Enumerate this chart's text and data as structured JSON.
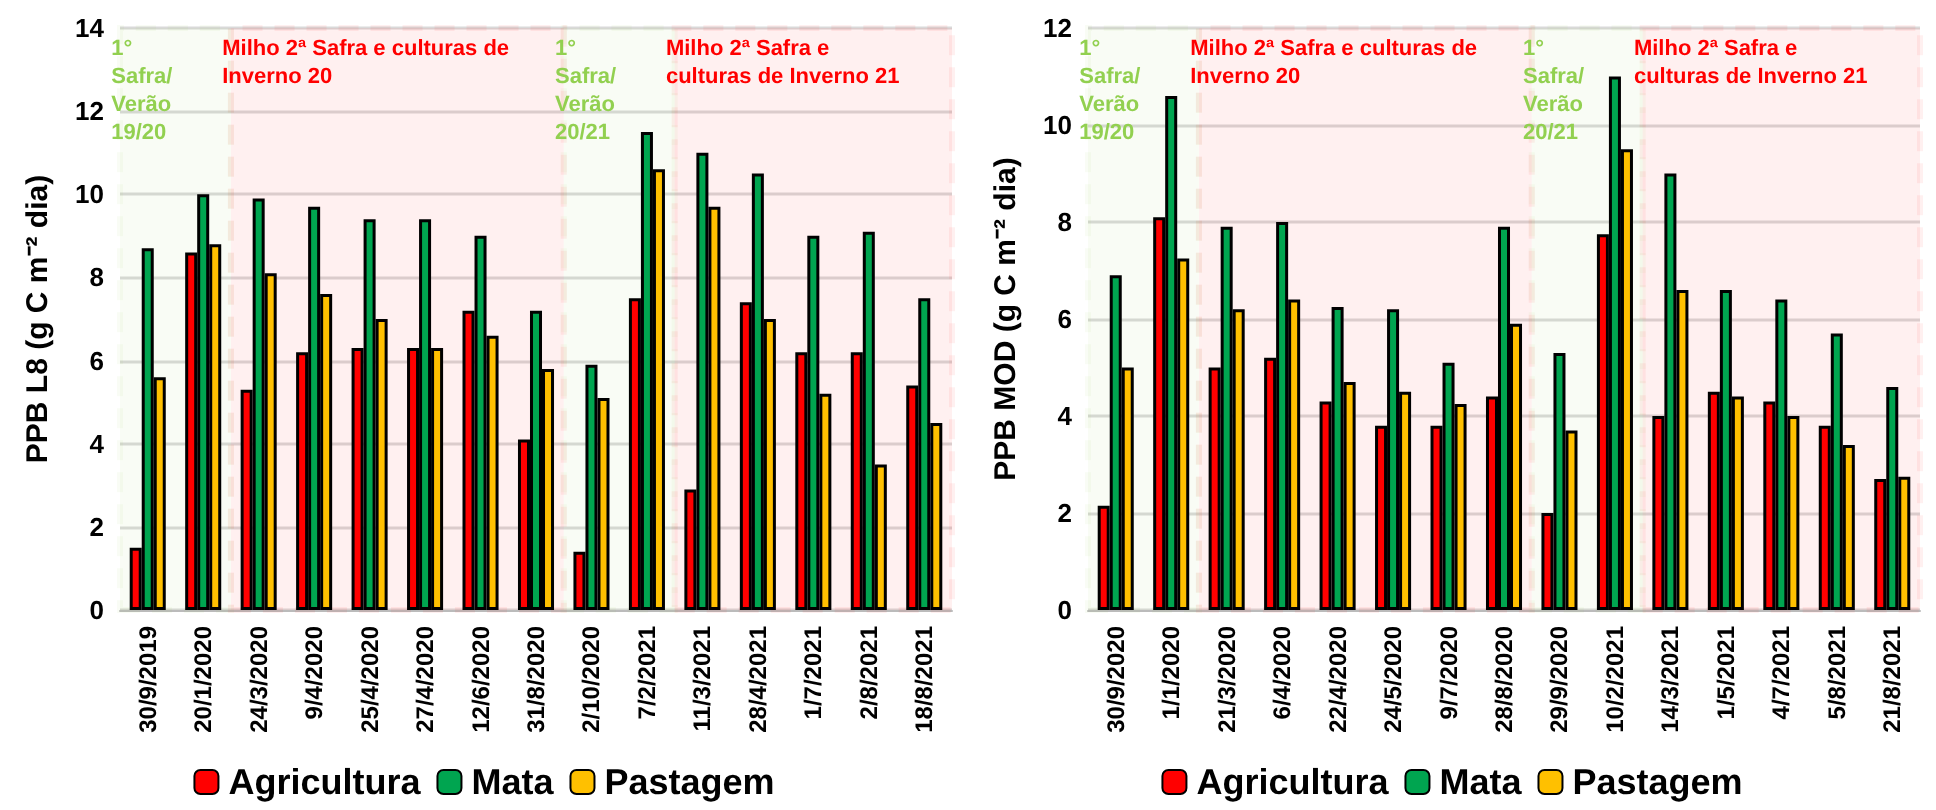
{
  "chart_data": [
    {
      "type": "bar",
      "ylabel": "PPB L8 (g C m⁻² dia)",
      "categories": [
        "30/9/2019",
        "20/1/2020",
        "24/3/2020",
        "9/4/2020",
        "25/4/2020",
        "27/4/2020",
        "12/6/2020",
        "31/8/2020",
        "2/10/2020",
        "7/2/2021",
        "11/3/2021",
        "28/4/2021",
        "1/7/2021",
        "2/8/2021",
        "18/8/2021"
      ],
      "series": [
        {
          "name": "Agricultura",
          "color": "#ff0000",
          "values": [
            1.5,
            8.6,
            5.3,
            6.2,
            6.3,
            6.3,
            7.2,
            4.1,
            1.4,
            7.5,
            2.9,
            7.4,
            6.2,
            6.2,
            5.4
          ]
        },
        {
          "name": "Mata",
          "color": "#00a550",
          "values": [
            8.7,
            10.0,
            9.9,
            9.7,
            9.4,
            9.4,
            9.0,
            7.2,
            5.9,
            11.5,
            11.0,
            10.5,
            9.0,
            9.1,
            7.5
          ]
        },
        {
          "name": "Pastagem",
          "color": "#ffc000",
          "values": [
            5.6,
            8.8,
            8.1,
            7.6,
            7.0,
            6.3,
            6.6,
            5.8,
            5.1,
            10.6,
            9.7,
            7.0,
            5.2,
            3.5,
            4.5
          ]
        }
      ],
      "ylim": [
        0,
        14
      ],
      "yticks": [
        0,
        2,
        4,
        6,
        8,
        10,
        12,
        14
      ],
      "grid": "y",
      "legend": "bottom",
      "bands": [
        {
          "axis": "x",
          "from": "30/9/2019",
          "to": "20/1/2020",
          "label": "1° Safra/Verão 19/20",
          "color": "#92d050"
        },
        {
          "axis": "x",
          "from": "24/3/2020",
          "to": "31/8/2020",
          "label": "Milho 2ª Safra e culturas de Inverno 20",
          "color": "#ff0000"
        },
        {
          "axis": "x",
          "from": "2/10/2020",
          "to": "7/2/2021",
          "label": "1° Safra/Verão 20/21",
          "color": "#92d050"
        },
        {
          "axis": "x",
          "from": "11/3/2021",
          "to": "18/8/2021",
          "label": "Milho 2ª Safra e culturas de Inverno 21",
          "color": "#ff0000"
        }
      ]
    },
    {
      "type": "bar",
      "ylabel": "PPB MOD (g C m⁻² dia)",
      "categories": [
        "30/9/2020",
        "1/1/2020",
        "21/3/2020",
        "6/4/2020",
        "22/4/2020",
        "24/5/2020",
        "9/7/2020",
        "28/8/2020",
        "29/9/2020",
        "10/2/2021",
        "14/3/2021",
        "1/5/2021",
        "4/7/2021",
        "5/8/2021",
        "21/8/2021"
      ],
      "series": [
        {
          "name": "Agricultura",
          "color": "#ff0000",
          "values": [
            2.15,
            8.1,
            5.0,
            5.2,
            4.3,
            3.8,
            3.8,
            4.4,
            2.0,
            7.75,
            4.0,
            4.5,
            4.3,
            3.8,
            2.7
          ]
        },
        {
          "name": "Mata",
          "color": "#00a550",
          "values": [
            6.9,
            10.6,
            7.9,
            8.0,
            6.25,
            6.2,
            5.1,
            7.9,
            5.3,
            11.0,
            9.0,
            6.6,
            6.4,
            5.7,
            4.6
          ]
        },
        {
          "name": "Pastagem",
          "color": "#ffc000",
          "values": [
            5.0,
            7.25,
            6.2,
            6.4,
            4.7,
            4.5,
            4.25,
            5.9,
            3.7,
            9.5,
            6.6,
            4.4,
            4.0,
            3.4,
            2.75
          ]
        }
      ],
      "ylim": [
        0,
        12
      ],
      "yticks": [
        0,
        2,
        4,
        6,
        8,
        10,
        12
      ],
      "grid": "y",
      "legend": "bottom",
      "bands": [
        {
          "axis": "x",
          "from": "30/9/2020",
          "to": "1/1/2020",
          "label": "1° Safra/Verão 19/20",
          "color": "#92d050"
        },
        {
          "axis": "x",
          "from": "21/3/2020",
          "to": "28/8/2020",
          "label": "Milho 2ª Safra e culturas de Inverno 20",
          "color": "#ff0000"
        },
        {
          "axis": "x",
          "from": "29/9/2020",
          "to": "10/2/2021",
          "label": "1° Safra/Verão 20/21",
          "color": "#92d050"
        },
        {
          "axis": "x",
          "from": "14/3/2021",
          "to": "21/8/2021",
          "label": "Milho 2ª Safra e culturas de Inverno 21",
          "color": "#ff0000"
        }
      ]
    }
  ]
}
